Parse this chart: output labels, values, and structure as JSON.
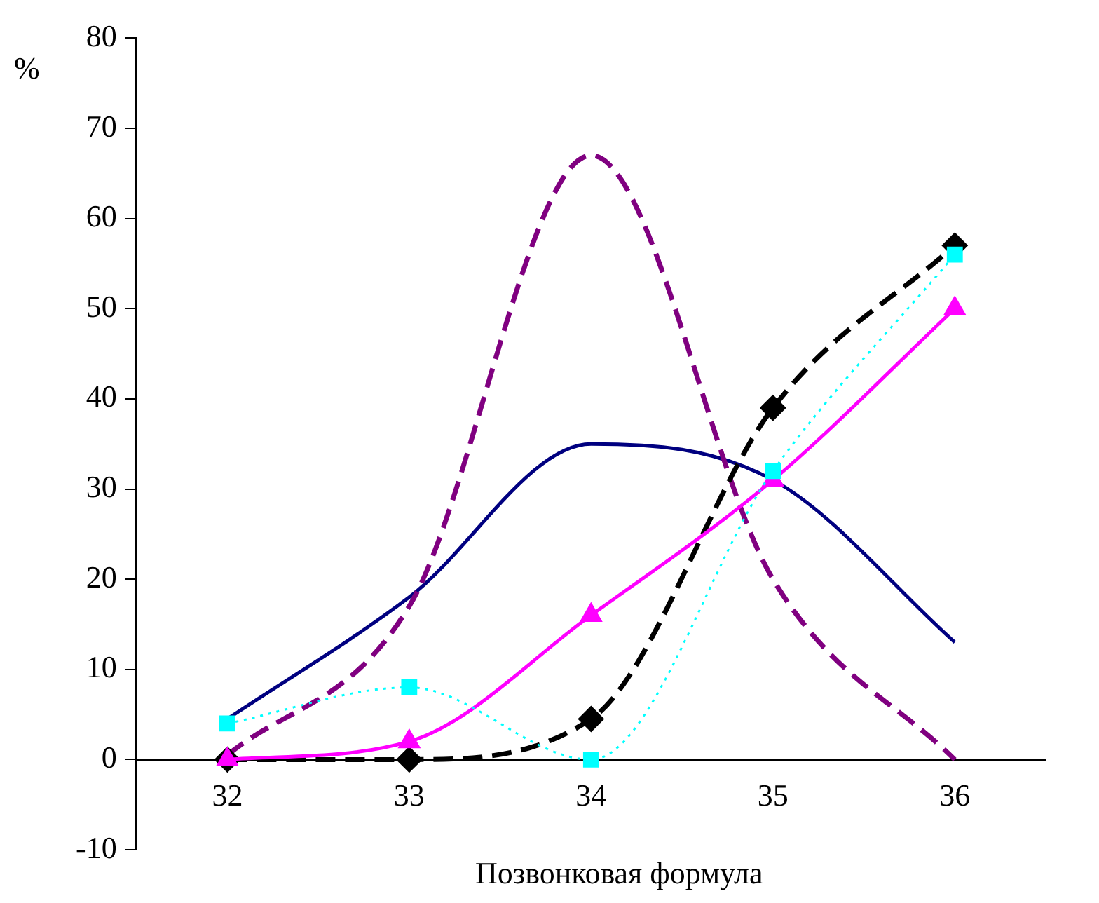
{
  "chart_data": {
    "type": "line",
    "xlabel": "Позвонковая формула",
    "ylabel": "%",
    "categories": [
      "32",
      "33",
      "34",
      "35",
      "36"
    ],
    "ylim": [
      -10,
      80
    ],
    "yticks": [
      -10,
      0,
      10,
      20,
      30,
      40,
      50,
      60,
      70,
      80
    ],
    "grid": false,
    "legend": false,
    "series": [
      {
        "color": "#000080",
        "values": [
          4.5,
          18,
          35,
          31,
          13
        ],
        "marker": "none",
        "line_style": "solid"
      },
      {
        "color": "#800080",
        "values": [
          0.5,
          17,
          67,
          20,
          0
        ],
        "marker": "none",
        "line_style": "dashed"
      },
      {
        "color": "#000000",
        "values": [
          0,
          0,
          4.5,
          39,
          57
        ],
        "marker": "diamond",
        "line_style": "dashed"
      },
      {
        "color": "#ff00ff",
        "values": [
          0,
          2,
          16,
          31,
          50
        ],
        "marker": "triangle",
        "line_style": "solid"
      },
      {
        "color": "#00ffff",
        "values": [
          4,
          8,
          0,
          32,
          56
        ],
        "marker": "square",
        "line_style": "dotted"
      }
    ]
  }
}
